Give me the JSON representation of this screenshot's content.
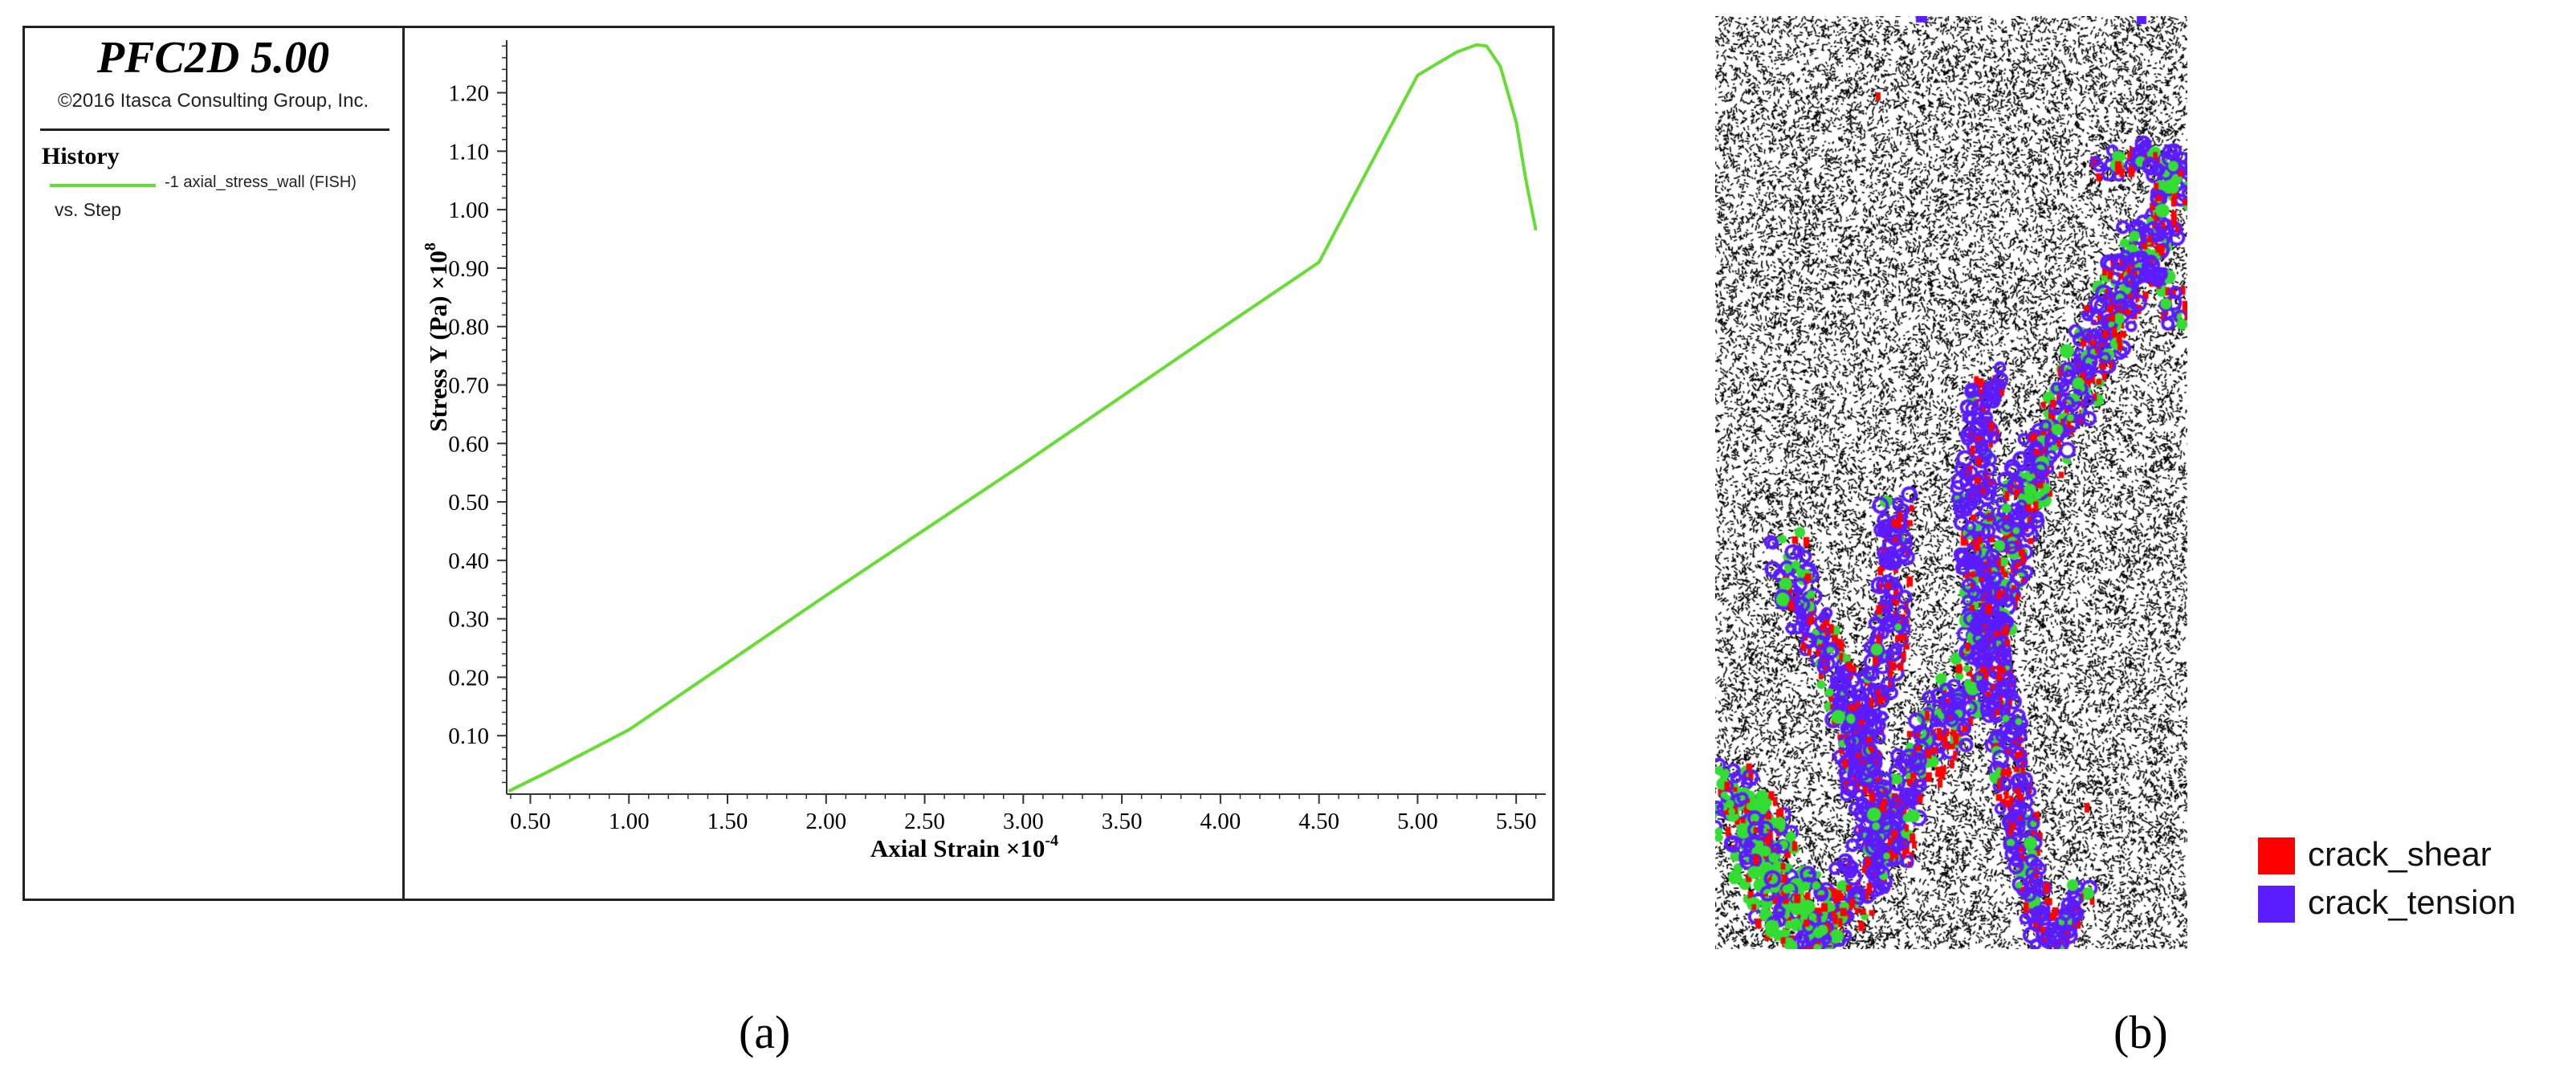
{
  "panel_a": {
    "title": "PFC2D 5.00",
    "copyright": "©2016 Itasca Consulting Group, Inc.",
    "history_heading": "History",
    "series_label": "-1 axial_stress_wall (FISH)",
    "vs_label": "vs. Step",
    "caption": "(a)"
  },
  "chart_data": {
    "type": "line",
    "xlabel": "Axial Strain ×10",
    "xlabel_exp": "-4",
    "ylabel": "Stress Y (Pa) ×10",
    "ylabel_exp": "8",
    "xlim": [
      0.38,
      5.65
    ],
    "ylim": [
      0.0,
      1.29
    ],
    "x_ticks": [
      "0.50",
      "1.00",
      "1.50",
      "2.00",
      "2.50",
      "3.00",
      "3.50",
      "4.00",
      "4.50",
      "5.00",
      "5.50"
    ],
    "y_ticks": [
      "0.10",
      "0.20",
      "0.30",
      "0.40",
      "0.50",
      "0.60",
      "0.70",
      "0.80",
      "0.90",
      "1.00",
      "1.10",
      "1.20"
    ],
    "series": [
      {
        "color": "#66dd33",
        "x": [
          0.39,
          0.45,
          0.6,
          1.0,
          2.0,
          3.0,
          4.0,
          4.5,
          5.0,
          5.2,
          5.3,
          5.35,
          5.42,
          5.5,
          5.55,
          5.6
        ],
        "y": [
          0.005,
          0.015,
          0.04,
          0.11,
          0.34,
          0.565,
          0.796,
          0.91,
          1.23,
          1.27,
          1.282,
          1.28,
          1.245,
          1.15,
          1.05,
          0.965
        ]
      }
    ],
    "grid": false
  },
  "panel_b": {
    "legend": [
      {
        "label": "crack_shear",
        "color": "#ff0000"
      },
      {
        "label": "crack_tension",
        "color": "#5b1cff"
      }
    ],
    "particle_color": "#000000",
    "failure_zone_color": "#33dd33",
    "caption": "(b)"
  }
}
